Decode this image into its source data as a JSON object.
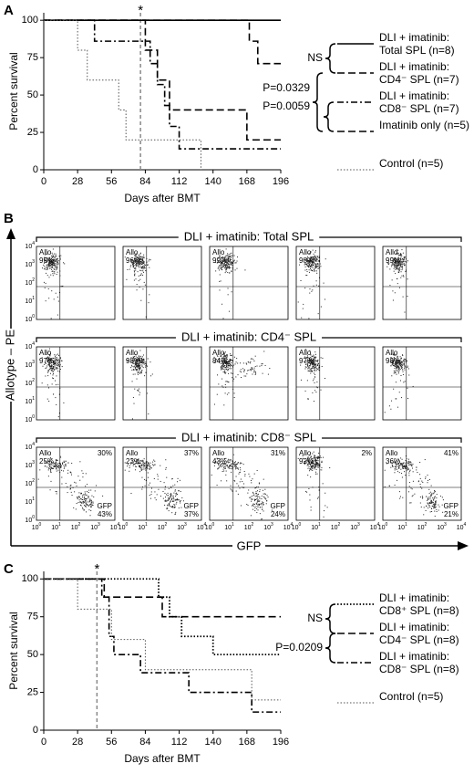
{
  "chart_data": [
    {
      "type": "line",
      "panel_label": "A",
      "x_label": "Days after BMT",
      "y_label": "Percent survival",
      "xlim": [
        0,
        196
      ],
      "ylim": [
        0,
        105
      ],
      "xticks": [
        0,
        28,
        56,
        84,
        112,
        140,
        168,
        196
      ],
      "yticks": [
        0,
        25,
        50,
        75,
        100
      ],
      "annotation": {
        "text": "*",
        "x": 80
      },
      "stat_labels": [
        "NS",
        "P=0.0329",
        "P=0.0059"
      ],
      "series": [
        {
          "name": "DLI + imatinib: Total SPL (n=8)",
          "color": "#000000",
          "style": "solid",
          "line_width": 1.6,
          "x": [
            0,
            196
          ],
          "values": [
            100,
            100
          ]
        },
        {
          "name": "DLI + imatinib: CD4⁻ SPL (n=7)",
          "color": "#000000",
          "style": "dashed",
          "line_width": 1.6,
          "x": [
            0,
            170,
            170,
            177,
            177,
            196
          ],
          "values": [
            100,
            100,
            86,
            86,
            71,
            71
          ]
        },
        {
          "name": "DLI + imatinib: CD8⁻ SPL (n=7)",
          "color": "#000000",
          "style": "dashdot",
          "line_width": 1.6,
          "x": [
            0,
            42,
            42,
            88,
            88,
            94,
            94,
            100,
            100,
            104,
            104,
            112,
            112,
            196
          ],
          "values": [
            100,
            100,
            86,
            86,
            71,
            71,
            57,
            57,
            43,
            43,
            29,
            29,
            14,
            14
          ]
        },
        {
          "name": "Imatinib only (n=5)",
          "color": "#000000",
          "style": "dashed",
          "line_width": 1.6,
          "x": [
            0,
            84,
            84,
            94,
            94,
            104,
            104,
            168,
            168,
            196
          ],
          "values": [
            100,
            100,
            80,
            80,
            60,
            60,
            40,
            40,
            20,
            20
          ]
        },
        {
          "name": "Control (n=5)",
          "color": "#555555",
          "style": "dotted",
          "line_width": 1,
          "x": [
            0,
            28,
            28,
            36,
            36,
            62,
            62,
            68,
            68,
            130,
            130
          ],
          "values": [
            100,
            100,
            80,
            80,
            60,
            60,
            40,
            40,
            20,
            20,
            0
          ]
        }
      ]
    },
    {
      "type": "line",
      "panel_label": "C",
      "x_label": "Days after BMT",
      "y_label": "Percent survival",
      "xlim": [
        0,
        196
      ],
      "ylim": [
        0,
        105
      ],
      "xticks": [
        0,
        28,
        56,
        84,
        112,
        140,
        168,
        196
      ],
      "yticks": [
        0,
        25,
        50,
        75,
        100
      ],
      "annotation": {
        "text": "*",
        "x": 44
      },
      "stat_labels": [
        "NS",
        "P=0.0209"
      ],
      "series": [
        {
          "name": "DLI + imatinib: CD8⁺ SPL (n=8)",
          "color": "#000000",
          "style": "dotted",
          "line_width": 1.8,
          "x": [
            0,
            95,
            95,
            104,
            104,
            114,
            114,
            140,
            140,
            196
          ],
          "values": [
            100,
            100,
            88,
            88,
            75,
            75,
            62,
            62,
            50,
            50
          ]
        },
        {
          "name": "DLI + imatinib: CD4⁻ SPL (n=8)",
          "color": "#000000",
          "style": "dashed",
          "line_width": 1.6,
          "x": [
            0,
            50,
            50,
            98,
            98,
            196
          ],
          "values": [
            100,
            100,
            88,
            88,
            75,
            75
          ]
        },
        {
          "name": "DLI + imatinib: CD8⁻ SPL (n=8)",
          "color": "#000000",
          "style": "dashdot",
          "line_width": 1.6,
          "x": [
            0,
            48,
            48,
            54,
            54,
            58,
            58,
            80,
            80,
            120,
            120,
            172,
            172,
            196
          ],
          "values": [
            100,
            100,
            88,
            88,
            62,
            62,
            50,
            50,
            38,
            38,
            25,
            25,
            12,
            12
          ]
        },
        {
          "name": "Control (n=5)",
          "color": "#555555",
          "style": "dotted",
          "line_width": 1,
          "x": [
            0,
            28,
            28,
            56,
            56,
            84,
            84,
            172,
            172,
            196
          ],
          "values": [
            100,
            100,
            80,
            80,
            60,
            60,
            40,
            40,
            20,
            20
          ]
        }
      ]
    }
  ],
  "flow": {
    "panel_label": "B",
    "y_axis_label": "Allotype – PE",
    "x_axis_label": "GFP",
    "tick_base": "10",
    "tick_exponents": [
      "0",
      "1",
      "2",
      "3",
      "4"
    ],
    "allo_label": "Allo",
    "gfp_label": "GFP",
    "rows": [
      {
        "title": "DLI + imatinib: Total SPL",
        "plots": [
          {
            "allo": "99%"
          },
          {
            "allo": "96%"
          },
          {
            "allo": "99%"
          },
          {
            "allo": "98%"
          },
          {
            "allo": "99%"
          }
        ]
      },
      {
        "title": "DLI + imatinib: CD4⁻ SPL",
        "plots": [
          {
            "allo": "97%"
          },
          {
            "allo": "98%"
          },
          {
            "allo": "84%"
          },
          {
            "allo": "97%"
          },
          {
            "allo": "98%"
          }
        ]
      },
      {
        "title": "DLI + imatinib: CD8⁻ SPL",
        "plots": [
          {
            "allo": "25%",
            "upper_right": "30%",
            "gfp": "43%"
          },
          {
            "allo": "23%",
            "upper_right": "37%",
            "gfp": "37%"
          },
          {
            "allo": "43%",
            "upper_right": "31%",
            "gfp": "24%"
          },
          {
            "allo": "92%",
            "upper_right": "2%"
          },
          {
            "allo": "36%",
            "upper_right": "41%",
            "gfp": "21%"
          }
        ]
      }
    ]
  }
}
